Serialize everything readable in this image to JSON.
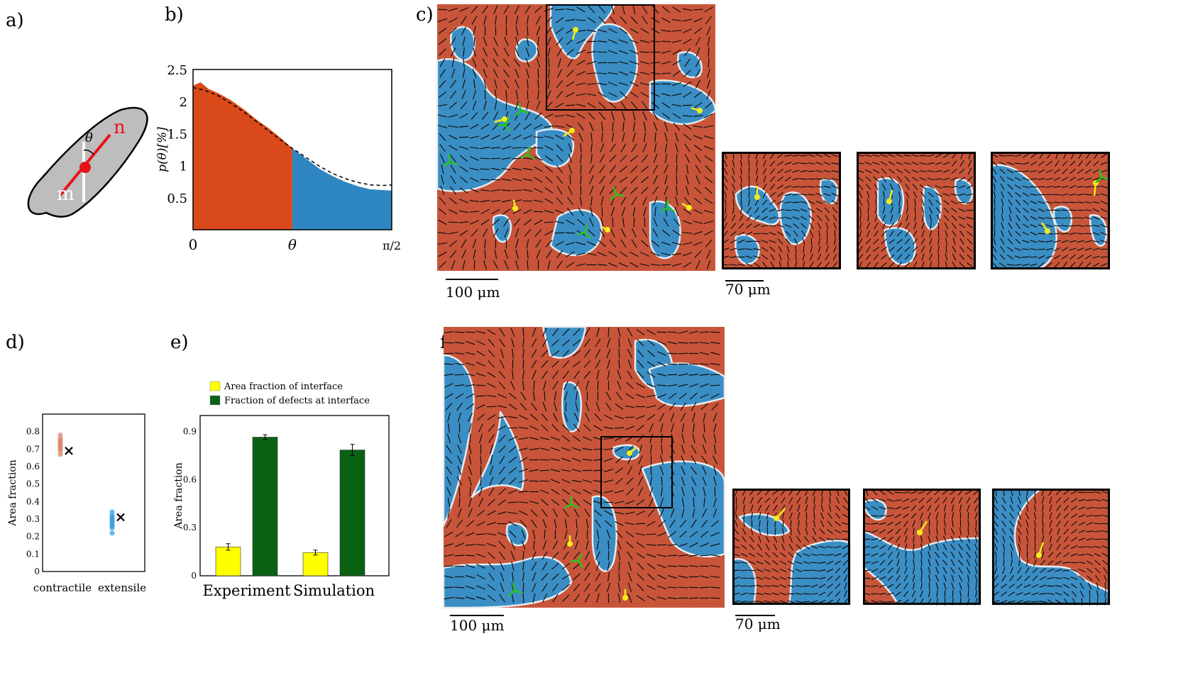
{
  "panel_labels": {
    "a": "a)",
    "b": "b)",
    "c": "c)",
    "d": "d)",
    "e": "e)",
    "f": "f)"
  },
  "panel_a": {
    "label_n": "n",
    "label_m": "m",
    "label_theta": "θ",
    "colors": {
      "cell": "#bdbdbd",
      "n_axis": "#e8131a",
      "m_axis": "#ffffff"
    }
  },
  "chart_data": [
    {
      "id": "b",
      "type": "area",
      "ylabel": "p(θ)[%]",
      "x_ticks": [
        "0",
        "θ",
        "π/2"
      ],
      "y_ticks": [
        "0.5",
        "1",
        "1.5",
        "2",
        "2.5"
      ],
      "ylim": [
        0,
        2.5
      ],
      "xlim": [
        0,
        1.5708
      ],
      "threshold_x": 0.785,
      "series": [
        {
          "fill_left": "#d9491a",
          "fill_right": "#2e86c1",
          "x": [
            0,
            0.06,
            0.12,
            0.2,
            0.3,
            0.4,
            0.5,
            0.6,
            0.7,
            0.785,
            0.9,
            1.0,
            1.1,
            1.2,
            1.3,
            1.4,
            1.5,
            1.5708
          ],
          "y": [
            2.25,
            2.3,
            2.2,
            2.13,
            2.02,
            1.88,
            1.72,
            1.58,
            1.42,
            1.27,
            1.1,
            0.95,
            0.84,
            0.75,
            0.68,
            0.63,
            0.62,
            0.61
          ]
        },
        {
          "style": "dashed",
          "x": [
            0,
            0.1,
            0.2,
            0.3,
            0.4,
            0.5,
            0.6,
            0.7,
            0.785,
            0.9,
            1.0,
            1.1,
            1.2,
            1.3,
            1.4,
            1.5,
            1.5708
          ],
          "y": [
            2.22,
            2.17,
            2.09,
            1.97,
            1.84,
            1.69,
            1.54,
            1.39,
            1.27,
            1.12,
            0.99,
            0.88,
            0.8,
            0.74,
            0.7,
            0.69,
            0.7
          ]
        }
      ]
    },
    {
      "id": "d",
      "type": "scatter",
      "ylabel": "Area fraction",
      "categories": [
        "contractile",
        "extensile"
      ],
      "y_ticks": [
        "0",
        "0.1",
        "0.2",
        "0.3",
        "0.4",
        "0.5",
        "0.6",
        "0.7",
        "0.8"
      ],
      "ylim": [
        0,
        0.9
      ],
      "series": [
        {
          "category": "contractile",
          "color": "#d9876a",
          "values": [
            0.67,
            0.69,
            0.7,
            0.71,
            0.72,
            0.73,
            0.74,
            0.75,
            0.76,
            0.78
          ],
          "marker": 0.69
        },
        {
          "category": "extensile",
          "color": "#3e9ee0",
          "values": [
            0.22,
            0.25,
            0.26,
            0.27,
            0.28,
            0.29,
            0.3,
            0.31,
            0.32,
            0.34
          ],
          "marker": 0.31
        }
      ]
    },
    {
      "id": "e",
      "type": "bar",
      "ylabel": "Area fraction",
      "categories": [
        "Experiment",
        "Simulation"
      ],
      "y_ticks": [
        "0",
        "0.3",
        "0.6",
        "0.9"
      ],
      "ylim": [
        0,
        1.0
      ],
      "legend": "top",
      "series": [
        {
          "name": "Area fraction of interface",
          "color": "#ffff00",
          "values": [
            0.18,
            0.145
          ],
          "err": [
            0.02,
            0.015
          ]
        },
        {
          "name": "Fraction of defects at interface",
          "color": "#0b6112",
          "values": [
            0.865,
            0.785
          ],
          "err": [
            0.015,
            0.035
          ]
        }
      ]
    }
  ],
  "panel_c": {
    "scale_main": "100 μm",
    "scale_zoom": "70 μm"
  },
  "panel_f": {
    "scale_main": "100 μm",
    "scale_zoom": "70 μm"
  },
  "colors": {
    "contractile": "#c8553a",
    "extensile": "#3b8ec4",
    "plus_defect": "#f5ec1a",
    "minus_defect": "#28c61e"
  }
}
